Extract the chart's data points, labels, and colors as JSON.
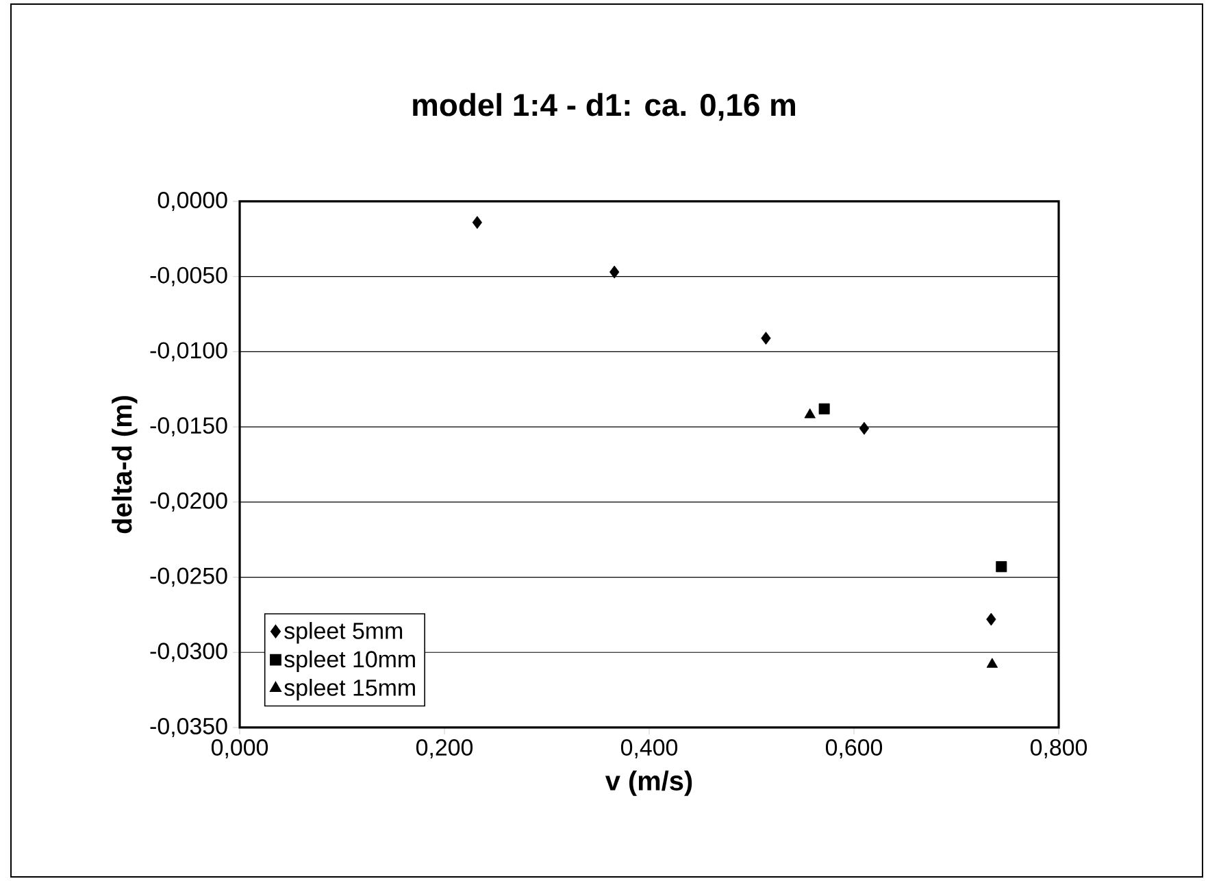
{
  "chart_data": {
    "type": "scatter",
    "title": "model 1:4 - d1: ca. 0,16 m",
    "xlabel": "v (m/s)",
    "ylabel": "delta-d (m)",
    "series": [
      {
        "name": "spleet 5mm",
        "color": "#000000",
        "marker": "diamond",
        "x": [
          0.232,
          0.366,
          0.514,
          0.61,
          0.734
        ],
        "values": [
          -0.0014,
          -0.0047,
          -0.0091,
          -0.0151,
          -0.0278
        ]
      },
      {
        "name": "spleet 10mm",
        "color": "#000000",
        "marker": "square",
        "x": [
          0.571,
          0.744
        ],
        "values": [
          -0.0138,
          -0.0243
        ]
      },
      {
        "name": "spleet 15mm",
        "color": "#000000",
        "marker": "triangle",
        "x": [
          0.557,
          0.735
        ],
        "values": [
          -0.0142,
          -0.0308
        ]
      }
    ],
    "xlim": [
      0,
      0.8
    ],
    "ylim": [
      -0.035,
      0
    ],
    "xticks": [
      {
        "value": 0,
        "label": "0,000"
      },
      {
        "value": 0.2,
        "label": "0,200"
      },
      {
        "value": 0.4,
        "label": "0,400"
      },
      {
        "value": 0.6,
        "label": "0,600"
      },
      {
        "value": 0.8,
        "label": "0,800"
      }
    ],
    "yticks": [
      {
        "value": 0,
        "label": "0,0000"
      },
      {
        "value": -0.005,
        "label": "-0,0050"
      },
      {
        "value": -0.01,
        "label": "-0,0100"
      },
      {
        "value": -0.015,
        "label": "-0,0150"
      },
      {
        "value": -0.02,
        "label": "-0,0200"
      },
      {
        "value": -0.025,
        "label": "-0,0250"
      },
      {
        "value": -0.03,
        "label": "-0,0300"
      },
      {
        "value": -0.035,
        "label": "-0,0350"
      }
    ],
    "grid": "y",
    "legend": "bottom left"
  }
}
